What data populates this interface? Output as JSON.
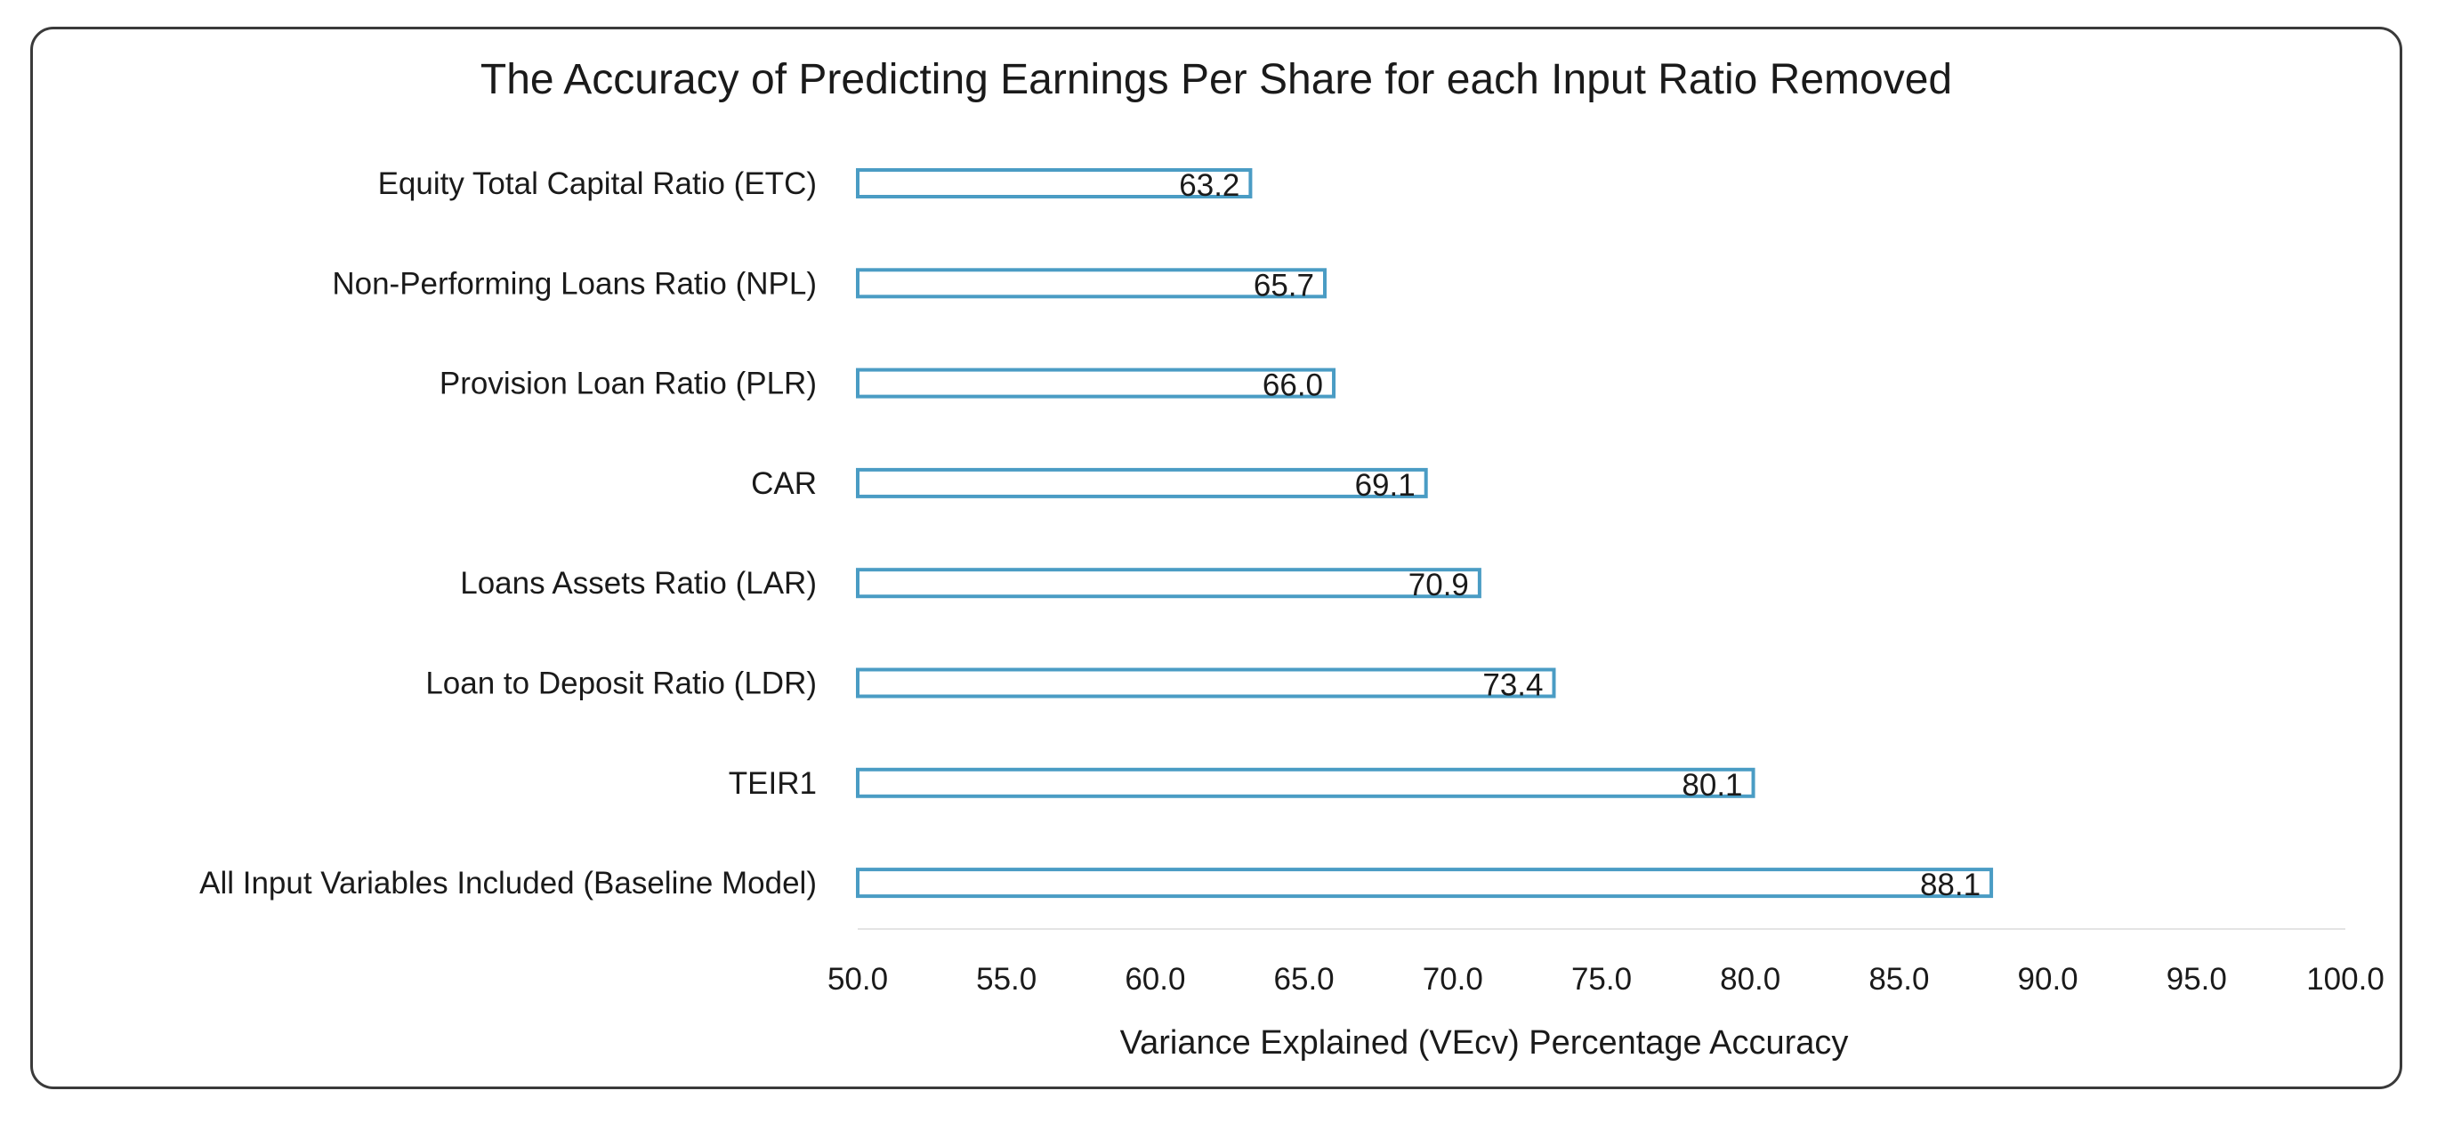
{
  "chart_data": {
    "type": "bar",
    "orientation": "horizontal",
    "title": "The Accuracy of Predicting Earnings Per Share for each Input Ratio Removed",
    "xlabel": "Variance Explained (VEcv) Percentage Accuracy",
    "ylabel": "",
    "xlim": [
      50,
      100
    ],
    "xticks": [
      "50.0",
      "55.0",
      "60.0",
      "65.0",
      "70.0",
      "75.0",
      "80.0",
      "85.0",
      "90.0",
      "95.0",
      "100.0"
    ],
    "categories": [
      "Equity Total Capital Ratio (ETC)",
      "Non-Performing Loans Ratio (NPL)",
      "Provision Loan Ratio (PLR)",
      "CAR",
      "Loans Assets Ratio (LAR)",
      "Loan to Deposit Ratio (LDR)",
      "TEIR1",
      "All Input Variables  Included (Baseline Model)"
    ],
    "values": [
      63.2,
      65.7,
      66.0,
      69.1,
      70.9,
      73.4,
      80.1,
      88.1
    ],
    "value_labels": [
      "63.2",
      "65.7",
      "66.0",
      "69.1",
      "70.9",
      "73.4",
      "80.1",
      "88.1"
    ],
    "bar_fill": "#ffffff",
    "bar_stroke": "#4a9cc4",
    "grid": false,
    "legend": "none"
  }
}
